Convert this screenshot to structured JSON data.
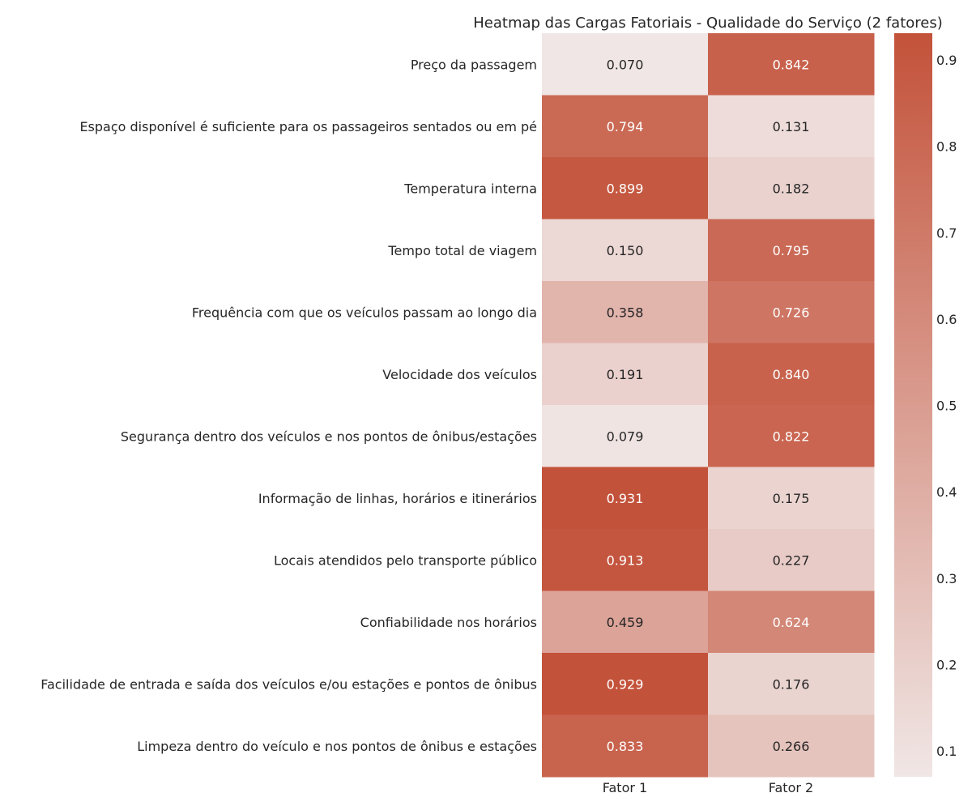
{
  "chart_data": {
    "type": "heatmap",
    "title": "Heatmap das Cargas Fatoriais - Qualidade do Serviço (2 fatores)",
    "columns": [
      "Fator 1",
      "Fator 2"
    ],
    "rows": [
      "Preço da passagem",
      "Espaço disponível é suficiente para os passageiros sentados ou em pé",
      "Temperatura interna",
      "Tempo total de viagem",
      "Frequência com que os veículos passam ao longo dia",
      "Velocidade dos veículos",
      "Segurança dentro dos veículos e nos pontos de ônibus/estações",
      "Informação de linhas, horários e itinerários",
      "Locais atendidos pelo transporte público",
      "Confiabilidade nos horários",
      "Facilidade de entrada e saída dos veículos e/ou estações e pontos de ônibus",
      "Limpeza dentro do veículo e nos pontos de ônibus e estações"
    ],
    "values": [
      [
        "0.070",
        "0.842"
      ],
      [
        "0.794",
        "0.131"
      ],
      [
        "0.899",
        "0.182"
      ],
      [
        "0.150",
        "0.795"
      ],
      [
        "0.358",
        "0.726"
      ],
      [
        "0.191",
        "0.840"
      ],
      [
        "0.079",
        "0.822"
      ],
      [
        "0.931",
        "0.175"
      ],
      [
        "0.913",
        "0.227"
      ],
      [
        "0.459",
        "0.624"
      ],
      [
        "0.929",
        "0.176"
      ],
      [
        "0.833",
        "0.266"
      ]
    ],
    "colorbar": {
      "min": 0.07,
      "max": 0.931,
      "ticks": [
        "0.1",
        "0.2",
        "0.3",
        "0.4",
        "0.5",
        "0.6",
        "0.7",
        "0.8",
        "0.9"
      ],
      "low_color": "#f0e6e5",
      "high_color": "#c3523a"
    },
    "colormap": "light-to-dark red (diverging palette)",
    "grid": false
  }
}
